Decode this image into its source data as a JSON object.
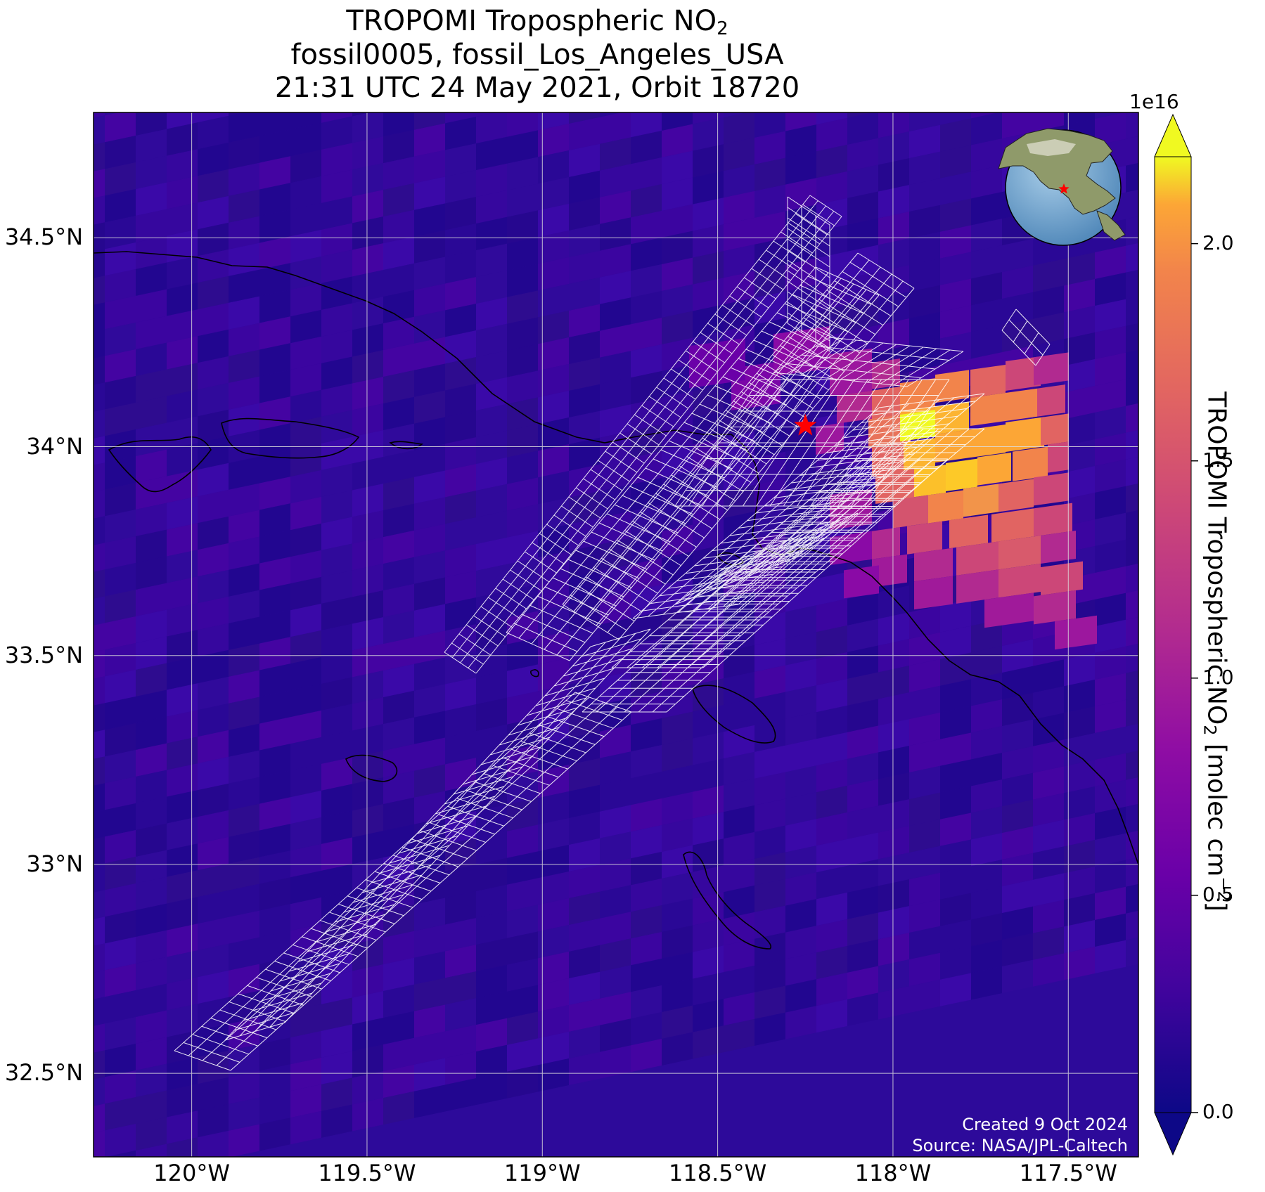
{
  "title": {
    "line1_prefix": "TROPOMI Tropospheric NO",
    "line1_sub": "2",
    "line2": "fossil0005, fossil_Los_Angeles_USA",
    "line3": "21:31 UTC 24 May 2021, Orbit 18720"
  },
  "map": {
    "lon_range": [
      -120.28,
      -117.3
    ],
    "lat_range": [
      32.3,
      34.8
    ],
    "lat_ticks": [
      {
        "value": 34.5,
        "label": "34.5°N"
      },
      {
        "value": 34.0,
        "label": "34°N"
      },
      {
        "value": 33.5,
        "label": "33.5°N"
      },
      {
        "value": 33.0,
        "label": "33°N"
      },
      {
        "value": 32.5,
        "label": "32.5°N"
      }
    ],
    "lon_ticks": [
      {
        "value": -120.0,
        "label": "120°W"
      },
      {
        "value": -119.5,
        "label": "119.5°W"
      },
      {
        "value": -119.0,
        "label": "119°W"
      },
      {
        "value": -118.5,
        "label": "118.5°W"
      },
      {
        "value": -118.0,
        "label": "118°W"
      },
      {
        "value": -117.5,
        "label": "117.5°W"
      }
    ],
    "gridlines": true,
    "target_marker": {
      "lon": -118.25,
      "lat": 34.05,
      "symbol": "star",
      "color": "#ff0000"
    },
    "background_field": "TROPOMI tropospheric NO2 column (plasma colormap)",
    "overlay": "white target-mode sounding footprints",
    "inset": "globe locator centred on western North America with red star"
  },
  "colorbar": {
    "colormap": "plasma",
    "range": [
      0.0,
      2.2
    ],
    "exponent": "1e16",
    "ticks": [
      "0.0",
      "0.5",
      "1.0",
      "1.5",
      "2.0"
    ],
    "tick_values": [
      0.0,
      0.5,
      1.0,
      1.5,
      2.0
    ],
    "label_prefix": "TROPOMI Tropospheric NO",
    "label_sub": "2",
    "label_mid": " [molec cm",
    "label_sup": "−2",
    "label_suffix": "]",
    "extend": "both"
  },
  "credits": {
    "created": "Created 9 Oct 2024",
    "source": "Source: NASA/JPL-Caltech"
  }
}
